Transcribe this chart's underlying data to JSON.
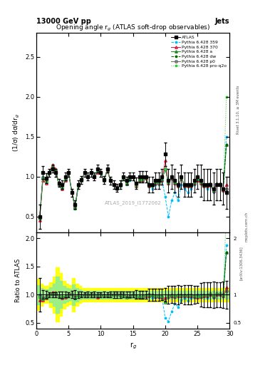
{
  "title_left": "13000 GeV pp",
  "title_right": "Jets",
  "plot_title": "Opening angle r$_g$ (ATLAS soft-drop observables)",
  "watermark": "ATLAS_2019_I1772062",
  "ylabel_main": "(1/σ) dσ/dr$_g$",
  "ylabel_ratio": "Ratio to ATLAS",
  "xlabel": "r$_g$",
  "rivet_label": "Rivet 3.1.10, ≥ 3M events",
  "arxiv_label": "[arXiv:1306.3436]",
  "mcplots_label": "mcplots.cern.ch",
  "xlim": [
    0,
    30
  ],
  "ylim_main": [
    0.3,
    2.8
  ],
  "ylim_ratio": [
    0.4,
    2.1
  ],
  "yticks_main": [
    0.5,
    1.0,
    1.5,
    2.0,
    2.5
  ],
  "yticks_ratio": [
    0.5,
    1.0,
    1.5,
    2.0
  ],
  "xticks": [
    0,
    5,
    10,
    15,
    20,
    25,
    30
  ],
  "x_data": [
    0.5,
    1.0,
    1.5,
    2.0,
    2.5,
    3.0,
    3.5,
    4.0,
    4.5,
    5.0,
    5.5,
    6.0,
    6.5,
    7.0,
    7.5,
    8.0,
    8.5,
    9.0,
    9.5,
    10.0,
    10.5,
    11.0,
    11.5,
    12.0,
    12.5,
    13.0,
    13.5,
    14.0,
    14.5,
    15.0,
    15.5,
    16.0,
    16.5,
    17.0,
    17.5,
    18.0,
    18.5,
    19.0,
    19.5,
    20.0,
    20.5,
    21.0,
    21.5,
    22.0,
    22.5,
    23.0,
    23.5,
    24.0,
    24.5,
    25.0,
    25.5,
    26.0,
    26.5,
    27.0,
    27.5,
    28.0,
    28.5,
    29.0,
    29.5
  ],
  "atlas_y": [
    0.5,
    1.05,
    0.98,
    1.05,
    1.1,
    1.05,
    0.92,
    0.9,
    1.0,
    1.05,
    0.8,
    0.65,
    0.9,
    0.96,
    1.05,
    1.0,
    1.05,
    1.0,
    1.1,
    1.05,
    0.96,
    1.1,
    0.95,
    0.9,
    0.86,
    0.9,
    1.0,
    0.95,
    1.0,
    1.0,
    0.92,
    1.0,
    1.0,
    1.0,
    0.9,
    0.9,
    0.95,
    0.95,
    1.0,
    1.28,
    0.95,
    1.0,
    0.95,
    0.9,
    1.0,
    0.9,
    0.9,
    0.9,
    0.95,
    1.0,
    0.95,
    0.9,
    0.9,
    0.9,
    0.85,
    0.9,
    0.9,
    0.85,
    0.8
  ],
  "atlas_yerr": [
    0.15,
    0.08,
    0.06,
    0.05,
    0.05,
    0.05,
    0.05,
    0.05,
    0.05,
    0.05,
    0.05,
    0.05,
    0.05,
    0.05,
    0.05,
    0.05,
    0.05,
    0.05,
    0.05,
    0.05,
    0.05,
    0.05,
    0.05,
    0.05,
    0.05,
    0.05,
    0.05,
    0.05,
    0.05,
    0.05,
    0.07,
    0.07,
    0.07,
    0.07,
    0.1,
    0.1,
    0.1,
    0.1,
    0.1,
    0.15,
    0.15,
    0.15,
    0.15,
    0.15,
    0.15,
    0.15,
    0.15,
    0.15,
    0.15,
    0.15,
    0.2,
    0.2,
    0.2,
    0.2,
    0.2,
    0.2,
    0.2,
    0.2,
    0.2
  ],
  "py359_y": [
    0.5,
    1.0,
    0.95,
    1.04,
    1.1,
    1.05,
    0.9,
    0.85,
    0.95,
    1.05,
    0.8,
    0.6,
    0.88,
    0.95,
    1.05,
    1.0,
    1.05,
    1.0,
    1.1,
    1.05,
    0.95,
    1.1,
    0.95,
    0.9,
    0.85,
    0.88,
    1.0,
    0.9,
    0.95,
    1.0,
    0.9,
    0.95,
    0.95,
    0.98,
    0.9,
    0.85,
    0.9,
    0.9,
    0.95,
    0.75,
    0.5,
    0.7,
    0.8,
    0.7,
    0.9,
    0.85,
    0.8,
    0.85,
    0.9,
    1.0,
    0.95,
    0.9,
    0.85,
    0.9,
    0.8,
    0.9,
    0.9,
    0.85,
    1.5
  ],
  "py370_y": [
    0.45,
    0.95,
    0.92,
    1.05,
    1.15,
    1.1,
    0.9,
    0.85,
    0.95,
    1.05,
    0.82,
    0.62,
    0.9,
    0.95,
    1.05,
    1.0,
    1.05,
    1.0,
    1.05,
    1.05,
    0.95,
    1.08,
    0.95,
    0.9,
    0.87,
    0.9,
    1.0,
    0.92,
    0.98,
    1.0,
    0.88,
    0.95,
    0.95,
    0.98,
    0.88,
    0.9,
    0.92,
    0.92,
    0.95,
    1.2,
    0.92,
    0.98,
    0.92,
    0.88,
    0.98,
    0.88,
    0.88,
    0.88,
    0.92,
    0.95,
    0.92,
    0.88,
    0.88,
    0.9,
    0.82,
    0.9,
    0.9,
    0.83,
    0.9
  ],
  "pya_y": [
    0.48,
    0.98,
    0.94,
    1.05,
    1.12,
    1.08,
    0.9,
    0.87,
    0.97,
    1.05,
    0.81,
    0.61,
    0.89,
    0.95,
    1.05,
    1.0,
    1.05,
    1.0,
    1.07,
    1.05,
    0.95,
    1.09,
    0.95,
    0.9,
    0.86,
    0.89,
    1.0,
    0.91,
    0.97,
    1.0,
    0.89,
    0.96,
    0.96,
    0.99,
    0.89,
    0.89,
    0.93,
    0.93,
    0.96,
    1.1,
    0.93,
    0.99,
    0.93,
    0.89,
    0.99,
    0.89,
    0.89,
    0.89,
    0.93,
    0.97,
    0.93,
    0.89,
    0.89,
    0.91,
    0.83,
    0.91,
    0.91,
    0.84,
    1.4
  ],
  "pydw_y": [
    0.48,
    0.98,
    0.94,
    1.05,
    1.12,
    1.08,
    0.9,
    0.87,
    0.97,
    1.05,
    0.81,
    0.61,
    0.89,
    0.95,
    1.05,
    1.0,
    1.05,
    1.0,
    1.07,
    1.05,
    0.95,
    1.09,
    0.95,
    0.9,
    0.86,
    0.89,
    1.0,
    0.91,
    0.97,
    1.0,
    0.89,
    0.96,
    0.96,
    0.99,
    0.89,
    0.89,
    0.93,
    0.93,
    0.96,
    1.1,
    0.93,
    0.99,
    0.93,
    0.89,
    0.99,
    0.89,
    0.89,
    0.89,
    0.93,
    0.97,
    0.93,
    0.89,
    0.89,
    0.91,
    0.83,
    0.91,
    0.91,
    0.84,
    1.4
  ],
  "pyp0_y": [
    0.49,
    0.99,
    0.95,
    1.05,
    1.1,
    1.06,
    0.9,
    0.86,
    0.96,
    1.04,
    0.8,
    0.62,
    0.9,
    0.95,
    1.05,
    1.0,
    1.05,
    1.0,
    1.08,
    1.05,
    0.95,
    1.09,
    0.95,
    0.9,
    0.86,
    0.9,
    1.0,
    0.91,
    0.97,
    1.0,
    0.89,
    0.96,
    0.96,
    0.99,
    0.9,
    0.89,
    0.93,
    0.93,
    0.96,
    1.1,
    0.93,
    0.99,
    0.93,
    0.89,
    0.99,
    0.89,
    0.89,
    0.89,
    0.93,
    0.97,
    0.93,
    0.89,
    0.89,
    0.91,
    0.83,
    0.91,
    0.91,
    0.84,
    0.85
  ],
  "pyproq2o_y": [
    0.48,
    0.98,
    0.94,
    1.05,
    1.12,
    1.08,
    0.9,
    0.87,
    0.97,
    1.05,
    0.81,
    0.61,
    0.89,
    0.95,
    1.05,
    1.0,
    1.05,
    1.0,
    1.07,
    1.05,
    0.95,
    1.09,
    0.95,
    0.9,
    0.86,
    0.89,
    1.0,
    0.91,
    0.97,
    1.0,
    0.89,
    0.96,
    0.96,
    0.99,
    0.89,
    0.89,
    0.93,
    0.93,
    0.96,
    1.1,
    0.93,
    0.99,
    0.93,
    0.89,
    0.99,
    0.89,
    0.89,
    0.89,
    0.93,
    0.97,
    0.93,
    0.89,
    0.89,
    0.91,
    0.83,
    0.91,
    0.91,
    0.84,
    2.0
  ],
  "band_x": [
    0,
    0.5,
    1.0,
    1.5,
    2.0,
    2.5,
    3.0,
    3.5,
    4.0,
    4.5,
    5.0,
    5.5,
    6.0,
    6.5,
    7.0,
    7.5,
    8.0,
    8.5,
    9.0,
    9.5,
    10.0,
    10.5,
    11.0,
    11.5,
    12.0,
    12.5,
    13.0,
    13.5,
    14.0,
    14.5,
    15.0,
    15.5,
    16.0,
    16.5,
    17.0,
    17.5,
    18.0,
    18.5,
    19.0,
    19.5,
    20.0,
    20.5,
    21.0,
    21.5,
    22.0,
    22.5,
    23.0,
    23.5,
    24.0,
    24.5,
    25.0,
    25.5,
    26.0,
    26.5,
    27.0,
    27.5,
    28.0,
    28.5,
    29.0,
    29.5,
    30.0
  ],
  "band_yellow_lo": [
    0.72,
    0.72,
    0.8,
    0.85,
    0.85,
    0.78,
    0.68,
    0.52,
    0.62,
    0.75,
    0.8,
    0.83,
    0.7,
    0.8,
    0.85,
    0.88,
    0.88,
    0.88,
    0.88,
    0.88,
    0.88,
    0.88,
    0.88,
    0.88,
    0.88,
    0.88,
    0.88,
    0.88,
    0.88,
    0.88,
    0.88,
    0.88,
    0.88,
    0.88,
    0.88,
    0.88,
    0.88,
    0.88,
    0.88,
    0.88,
    0.88,
    0.88,
    0.88,
    0.88,
    0.88,
    0.88,
    0.88,
    0.88,
    0.88,
    0.88,
    0.88,
    0.88,
    0.88,
    0.88,
    0.88,
    0.88,
    0.88,
    0.88,
    0.88,
    0.88,
    0.88
  ],
  "band_yellow_hi": [
    1.28,
    1.28,
    1.2,
    1.15,
    1.15,
    1.22,
    1.32,
    1.48,
    1.38,
    1.25,
    1.2,
    1.17,
    1.3,
    1.2,
    1.15,
    1.12,
    1.12,
    1.12,
    1.12,
    1.12,
    1.12,
    1.12,
    1.12,
    1.12,
    1.12,
    1.12,
    1.12,
    1.12,
    1.12,
    1.12,
    1.12,
    1.12,
    1.12,
    1.12,
    1.12,
    1.12,
    1.12,
    1.12,
    1.12,
    1.12,
    1.12,
    1.12,
    1.12,
    1.12,
    1.12,
    1.12,
    1.12,
    1.12,
    1.12,
    1.12,
    1.12,
    1.12,
    1.12,
    1.12,
    1.12,
    1.12,
    1.12,
    1.12,
    1.12,
    1.12,
    1.12
  ],
  "band_green_lo": [
    0.83,
    0.83,
    0.88,
    0.91,
    0.91,
    0.87,
    0.8,
    0.68,
    0.76,
    0.85,
    0.88,
    0.9,
    0.82,
    0.88,
    0.91,
    0.93,
    0.93,
    0.93,
    0.93,
    0.93,
    0.93,
    0.93,
    0.93,
    0.93,
    0.93,
    0.93,
    0.93,
    0.93,
    0.93,
    0.93,
    0.93,
    0.93,
    0.93,
    0.93,
    0.93,
    0.93,
    0.93,
    0.93,
    0.93,
    0.93,
    0.93,
    0.93,
    0.93,
    0.93,
    0.93,
    0.93,
    0.93,
    0.93,
    0.93,
    0.93,
    0.93,
    0.93,
    0.93,
    0.93,
    0.93,
    0.93,
    0.93,
    0.93,
    0.93,
    0.93,
    0.93
  ],
  "band_green_hi": [
    1.17,
    1.17,
    1.12,
    1.09,
    1.09,
    1.13,
    1.2,
    1.32,
    1.24,
    1.15,
    1.12,
    1.1,
    1.18,
    1.12,
    1.09,
    1.07,
    1.07,
    1.07,
    1.07,
    1.07,
    1.07,
    1.07,
    1.07,
    1.07,
    1.07,
    1.07,
    1.07,
    1.07,
    1.07,
    1.07,
    1.07,
    1.07,
    1.07,
    1.07,
    1.07,
    1.07,
    1.07,
    1.07,
    1.07,
    1.07,
    1.07,
    1.07,
    1.07,
    1.07,
    1.07,
    1.07,
    1.07,
    1.07,
    1.07,
    1.07,
    1.07,
    1.07,
    1.07,
    1.07,
    1.07,
    1.07,
    1.07,
    1.07,
    1.07,
    1.07,
    1.07
  ],
  "color_359": "#00bfff",
  "color_370": "#dc143c",
  "color_a": "#228b22",
  "color_dw": "#006400",
  "color_p0": "#696969",
  "color_proq2o": "#32cd32",
  "color_atlas": "black",
  "color_band_yellow": "#ffff00",
  "color_band_green": "#90ee90"
}
